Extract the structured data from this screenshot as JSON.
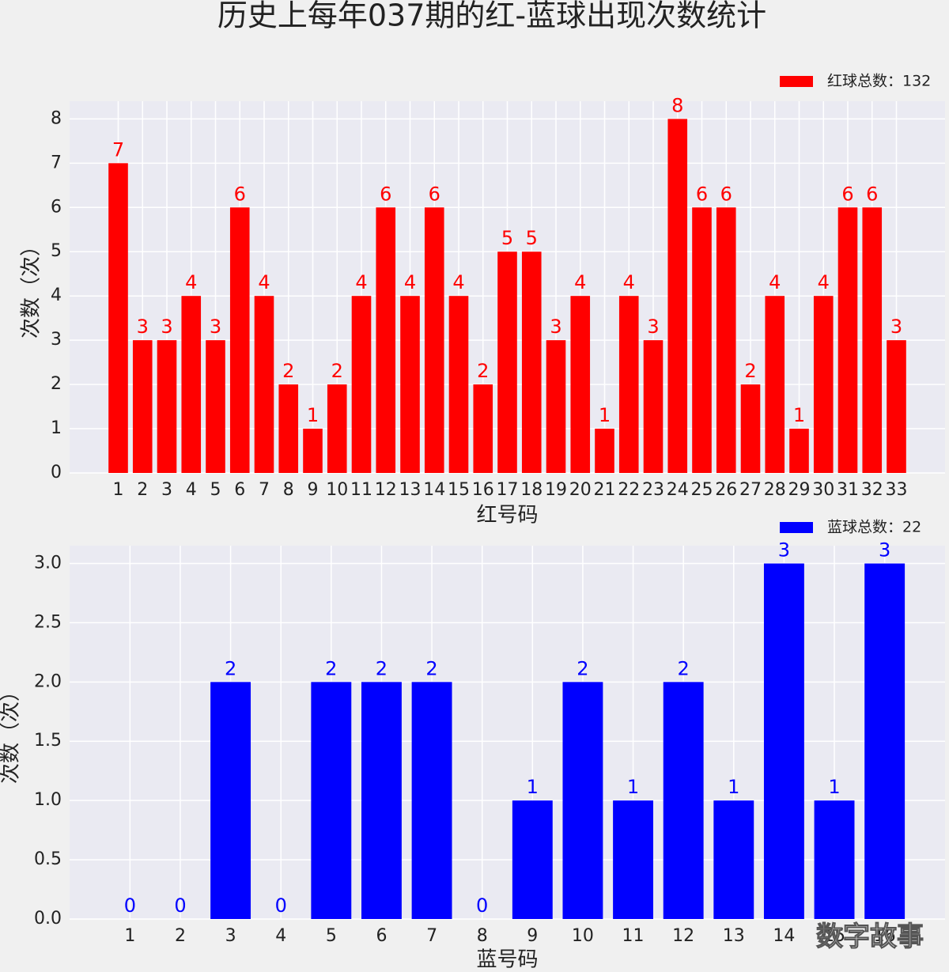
{
  "title": "历史上每年037期的红-蓝球出现次数统计",
  "watermark": "数字故事",
  "chart_data": [
    {
      "type": "bar",
      "categories": [
        "1",
        "2",
        "3",
        "4",
        "5",
        "6",
        "7",
        "8",
        "9",
        "10",
        "11",
        "12",
        "13",
        "14",
        "15",
        "16",
        "17",
        "18",
        "19",
        "20",
        "21",
        "22",
        "23",
        "24",
        "25",
        "26",
        "27",
        "28",
        "29",
        "30",
        "31",
        "32",
        "33"
      ],
      "series": [
        {
          "name": "红球总数：132",
          "color": "#ff0000",
          "values": [
            7,
            3,
            3,
            4,
            3,
            6,
            4,
            2,
            1,
            2,
            4,
            6,
            4,
            6,
            4,
            2,
            5,
            5,
            3,
            4,
            1,
            4,
            3,
            8,
            6,
            6,
            2,
            4,
            1,
            4,
            6,
            6,
            3
          ]
        }
      ],
      "xlabel": "红号码",
      "ylabel": "次数（次）",
      "ylim": [
        0,
        8.4
      ],
      "yticks": [
        0,
        1,
        2,
        3,
        4,
        5,
        6,
        7,
        8
      ],
      "grid": true,
      "legend": "upper right"
    },
    {
      "type": "bar",
      "categories": [
        "1",
        "2",
        "3",
        "4",
        "5",
        "6",
        "7",
        "8",
        "9",
        "10",
        "11",
        "12",
        "13",
        "14",
        "15",
        "16"
      ],
      "series": [
        {
          "name": "蓝球总数：22",
          "color": "#0000ff",
          "values": [
            0,
            0,
            2,
            0,
            2,
            2,
            2,
            0,
            1,
            2,
            1,
            2,
            1,
            3,
            1,
            3
          ]
        }
      ],
      "xlabel": "蓝号码",
      "ylabel": "次数（次）",
      "ylim": [
        0,
        3.15
      ],
      "yticks": [
        {
          "value": 0,
          "label": "0.0"
        },
        0.5,
        {
          "value": 1,
          "label": "1.0"
        },
        1.5,
        {
          "value": 2,
          "label": "2.0"
        },
        2.5,
        {
          "value": 3,
          "label": "3.0"
        }
      ],
      "grid": true,
      "legend": "upper right"
    }
  ]
}
